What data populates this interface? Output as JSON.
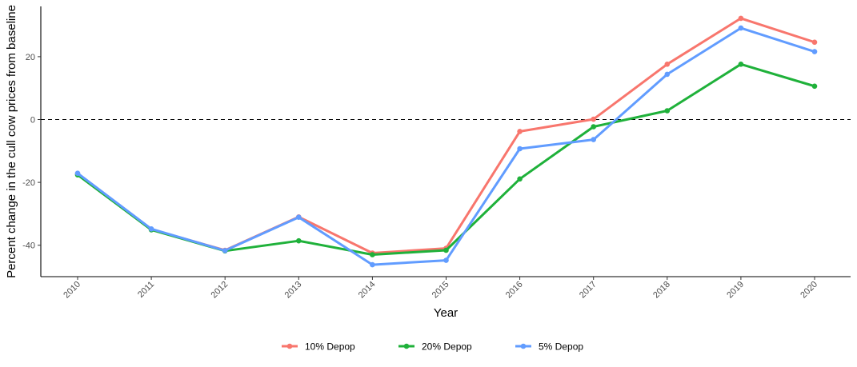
{
  "chart_data": {
    "type": "line",
    "title": "",
    "xlabel": "Year",
    "ylabel": "Percent change in the cull cow prices from baseline",
    "categories": [
      "2010",
      "2011",
      "2012",
      "2013",
      "2014",
      "2015",
      "2016",
      "2017",
      "2018",
      "2019",
      "2020"
    ],
    "ylim": [
      -50,
      36
    ],
    "yticks": [
      -40,
      -20,
      0,
      20
    ],
    "ytick_labels": [
      "-40",
      "-20",
      "0",
      "20"
    ],
    "reference_line": {
      "y": 0,
      "style": "dashed"
    },
    "grid": false,
    "legend_position": "bottom",
    "series": [
      {
        "name": "10% Depop",
        "color": "#F8766D",
        "values": [
          -17.3,
          -35.0,
          -41.6,
          -31.0,
          -42.5,
          -41.0,
          -3.8,
          0.1,
          17.6,
          32.2,
          24.6
        ]
      },
      {
        "name": "20% Depop",
        "color": "#1FB13A",
        "values": [
          -17.6,
          -35.1,
          -41.8,
          -38.6,
          -43.0,
          -41.6,
          -18.9,
          -2.3,
          2.8,
          17.6,
          10.6
        ]
      },
      {
        "name": "5% Depop",
        "color": "#619CFF",
        "values": [
          -17.1,
          -34.8,
          -41.7,
          -31.1,
          -46.2,
          -44.8,
          -9.3,
          -6.4,
          14.4,
          29.1,
          21.6
        ]
      }
    ]
  }
}
